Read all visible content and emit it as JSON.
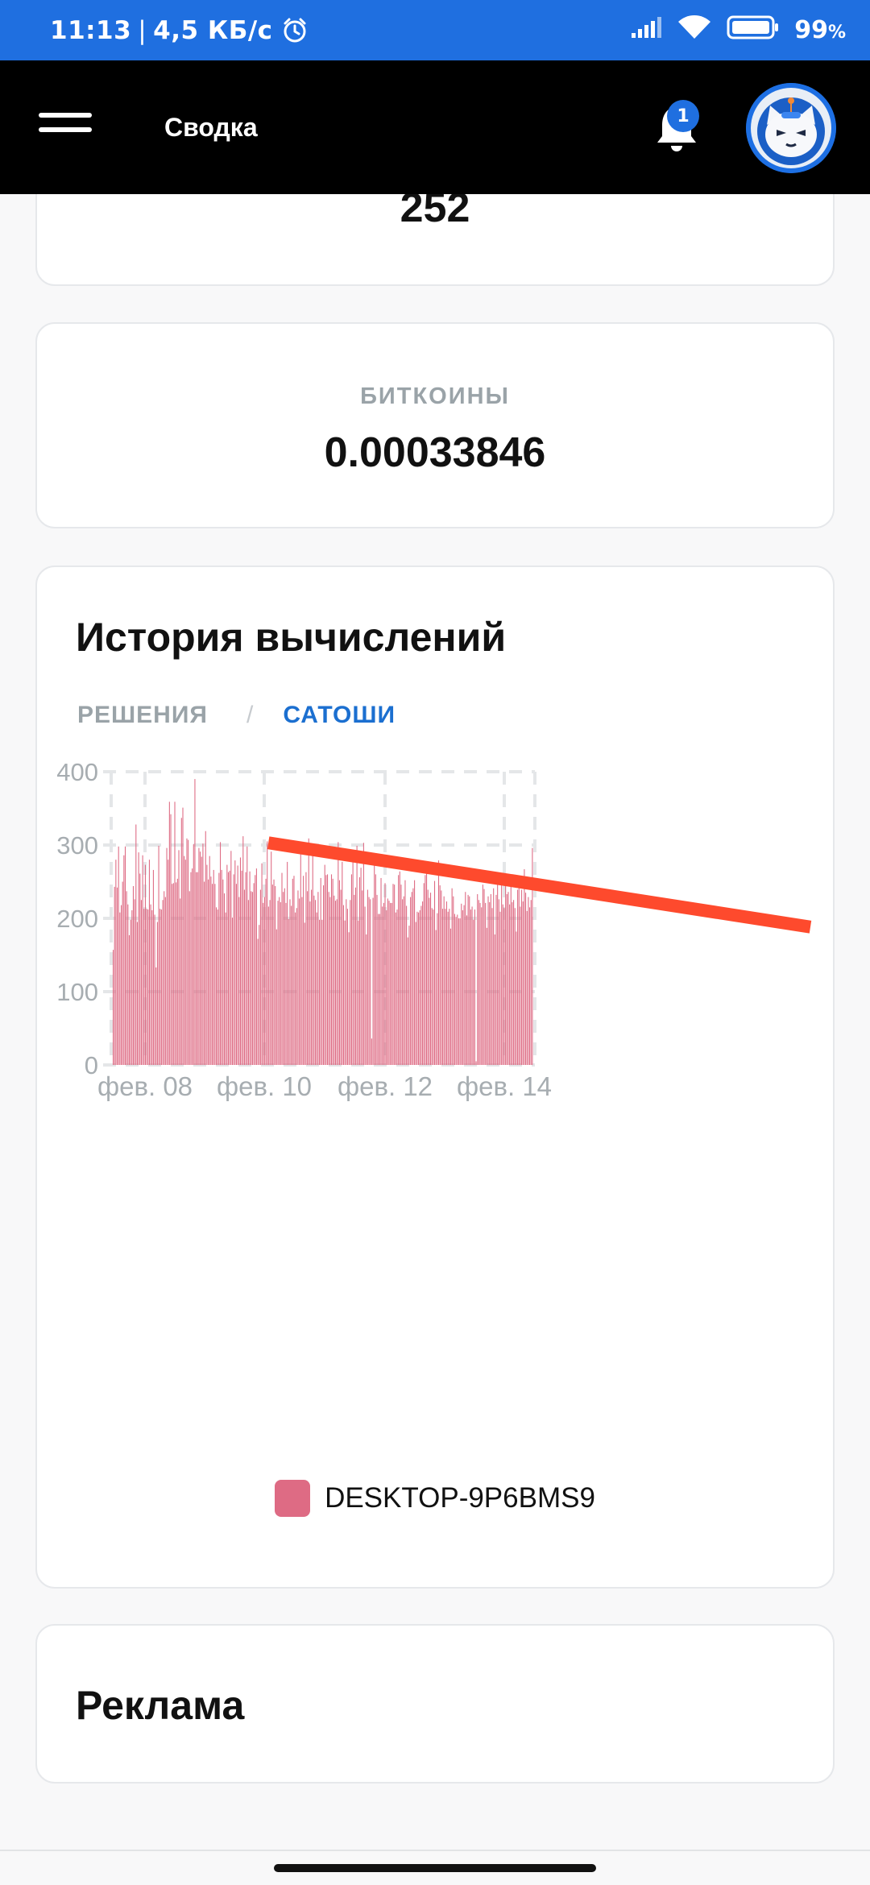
{
  "status_bar": {
    "time": "11:13",
    "network_speed": "4,5 КБ/с",
    "battery_percent": "99",
    "battery_suffix": "%",
    "icons": [
      "alarm-icon",
      "signal-icon",
      "wifi-icon",
      "battery-icon"
    ]
  },
  "header": {
    "title": "Сводка",
    "notification_count": "1",
    "icons": [
      "menu-icon",
      "bell-icon",
      "avatar"
    ]
  },
  "top_card": {
    "value": "252"
  },
  "bitcoin_card": {
    "label": "БИТКОИНЫ",
    "value": "0.00033846"
  },
  "history_card": {
    "title": "История вычислений",
    "tabs": [
      {
        "label": "РЕШЕНИЯ",
        "active": false
      },
      {
        "label": "САТОШИ",
        "active": true
      }
    ],
    "tab_separator": "/"
  },
  "chart_data": {
    "type": "bar",
    "y_ticks": [
      "0",
      "100",
      "200",
      "300",
      "400"
    ],
    "x_ticks": [
      "фев. 08",
      "фев. 10",
      "фев. 12",
      "фев. 14"
    ],
    "ylim": [
      0,
      400
    ],
    "grid": true,
    "legend_position": "bottom",
    "series": [
      {
        "name": "DESKTOP-9P6BMS9",
        "color": "#de6b84",
        "values": [
          157,
          243,
          280,
          242,
          298,
          208,
          218,
          250,
          286,
          298,
          237,
          219,
          177,
          198,
          211,
          244,
          226,
          328,
          195,
          290,
          261,
          225,
          286,
          213,
          273,
          213,
          212,
          280,
          219,
          211,
          266,
          205,
          133,
          195,
          299,
          213,
          212,
          225,
          237,
          229,
          296,
          280,
          359,
          342,
          247,
          248,
          359,
          249,
          254,
          293,
          227,
          337,
          351,
          285,
          280,
          309,
          307,
          237,
          263,
          268,
          301,
          390,
          263,
          263,
          296,
          291,
          284,
          302,
          250,
          319,
          273,
          253,
          285,
          257,
          247,
          266,
          247,
          215,
          212,
          262,
          304,
          266,
          253,
          234,
          208,
          273,
          263,
          265,
          292,
          201,
          260,
          279,
          247,
          272,
          229,
          283,
          265,
          312,
          239,
          263,
          298,
          225,
          264,
          237,
          236,
          248,
          259,
          268,
          172,
          191,
          239,
          275,
          221,
          229,
          254,
          305,
          216,
          225,
          291,
          246,
          253,
          244,
          185,
          224,
          229,
          222,
          262,
          236,
          241,
          221,
          277,
          199,
          226,
          217,
          254,
          258,
          208,
          214,
          238,
          227,
          295,
          229,
          258,
          194,
          263,
          237,
          309,
          223,
          239,
          290,
          231,
          225,
          208,
          236,
          198,
          255,
          198,
          245,
          273,
          259,
          260,
          236,
          229,
          260,
          254,
          231,
          224,
          226,
          304,
          252,
          239,
          277,
          218,
          197,
          226,
          213,
          181,
          225,
          260,
          277,
          232,
          242,
          299,
          197,
          256,
          269,
          238,
          303,
          216,
          178,
          239,
          229,
          226,
          36,
          228,
          283,
          260,
          232,
          206,
          206,
          255,
          216,
          221,
          248,
          211,
          227,
          224,
          221,
          221,
          247,
          246,
          208,
          212,
          259,
          264,
          246,
          226,
          230,
          252,
          217,
          174,
          190,
          229,
          236,
          241,
          252,
          195,
          209,
          208,
          211,
          217,
          223,
          248,
          259,
          267,
          239,
          228,
          235,
          214,
          212,
          251,
          184,
          207,
          279,
          245,
          238,
          213,
          230,
          213,
          223,
          209,
          213,
          186,
          241,
          230,
          206,
          202,
          205,
          200,
          200,
          220,
          211,
          218,
          236,
          204,
          232,
          230,
          212,
          216,
          198,
          212,
          5,
          233,
          225,
          221,
          215,
          246,
          240,
          221,
          187,
          230,
          222,
          233,
          214,
          241,
          178,
          232,
          253,
          226,
          209,
          261,
          219,
          214,
          247,
          233,
          236,
          219,
          245,
          222,
          225,
          214,
          182,
          239,
          245,
          216,
          239,
          223,
          267,
          235,
          210,
          229,
          215,
          225,
          296
        ]
      }
    ],
    "annotations": [
      {
        "type": "trend-line",
        "color": "#fe4a2d",
        "from": [
          0.37,
          303
        ],
        "to": [
          1.0,
          197
        ]
      }
    ]
  },
  "ad_card": {
    "title": "Реклама"
  }
}
